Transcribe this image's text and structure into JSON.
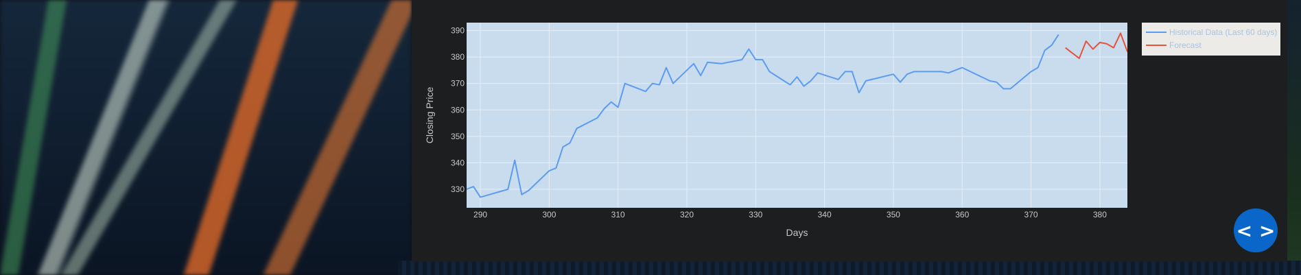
{
  "chart_data": {
    "type": "line",
    "title": "",
    "xlabel": "Days",
    "ylabel": "Closing Price",
    "xlim": [
      288,
      384
    ],
    "ylim": [
      323,
      393
    ],
    "x_ticks": [
      290,
      300,
      310,
      320,
      330,
      340,
      350,
      360,
      370,
      380
    ],
    "y_ticks": [
      330,
      340,
      350,
      360,
      370,
      380,
      390
    ],
    "grid": true,
    "legend_position": "top-right",
    "series": [
      {
        "name": "Historical Data (Last 60 days)",
        "color": "#5b9bf0",
        "points": [
          [
            288,
            330
          ],
          [
            289,
            331
          ],
          [
            290,
            327
          ],
          [
            294,
            330
          ],
          [
            295,
            341
          ],
          [
            296,
            328
          ],
          [
            297,
            329.5
          ],
          [
            300,
            337
          ],
          [
            301,
            338
          ],
          [
            302,
            346
          ],
          [
            303,
            347.5
          ],
          [
            304,
            353
          ],
          [
            307,
            357
          ],
          [
            308,
            360.5
          ],
          [
            309,
            363
          ],
          [
            310,
            361
          ],
          [
            311,
            370
          ],
          [
            314,
            367
          ],
          [
            315,
            370
          ],
          [
            316,
            369.5
          ],
          [
            317,
            376
          ],
          [
            318,
            370
          ],
          [
            321,
            377.5
          ],
          [
            322,
            373
          ],
          [
            323,
            378
          ],
          [
            325,
            377.5
          ],
          [
            328,
            379
          ],
          [
            329,
            383
          ],
          [
            330,
            379
          ],
          [
            331,
            379
          ],
          [
            332,
            374.5
          ],
          [
            335,
            369.5
          ],
          [
            336,
            372.5
          ],
          [
            337,
            369
          ],
          [
            338,
            371
          ],
          [
            339,
            374
          ],
          [
            342,
            371.5
          ],
          [
            343,
            374.5
          ],
          [
            344,
            374.5
          ],
          [
            345,
            366.5
          ],
          [
            346,
            371
          ],
          [
            350,
            373.5
          ],
          [
            351,
            370.5
          ],
          [
            352,
            373.5
          ],
          [
            353,
            374.5
          ],
          [
            357,
            374.5
          ],
          [
            358,
            374
          ],
          [
            359,
            375
          ],
          [
            360,
            376
          ],
          [
            364,
            371
          ],
          [
            365,
            370.5
          ],
          [
            366,
            368
          ],
          [
            367,
            368
          ],
          [
            370,
            374.5
          ],
          [
            371,
            376
          ],
          [
            372,
            382.5
          ],
          [
            373,
            384.5
          ],
          [
            374,
            388.5
          ]
        ]
      },
      {
        "name": "Forecast",
        "color": "#e8513a",
        "points": [
          [
            375,
            383.5
          ],
          [
            376,
            381.5
          ],
          [
            377,
            379.5
          ],
          [
            378,
            386
          ],
          [
            379,
            383
          ],
          [
            380,
            385.5
          ],
          [
            381,
            385
          ],
          [
            382,
            383.5
          ],
          [
            383,
            389
          ],
          [
            384,
            382
          ]
        ]
      }
    ]
  },
  "ui": {
    "code_button_label": "< >"
  }
}
